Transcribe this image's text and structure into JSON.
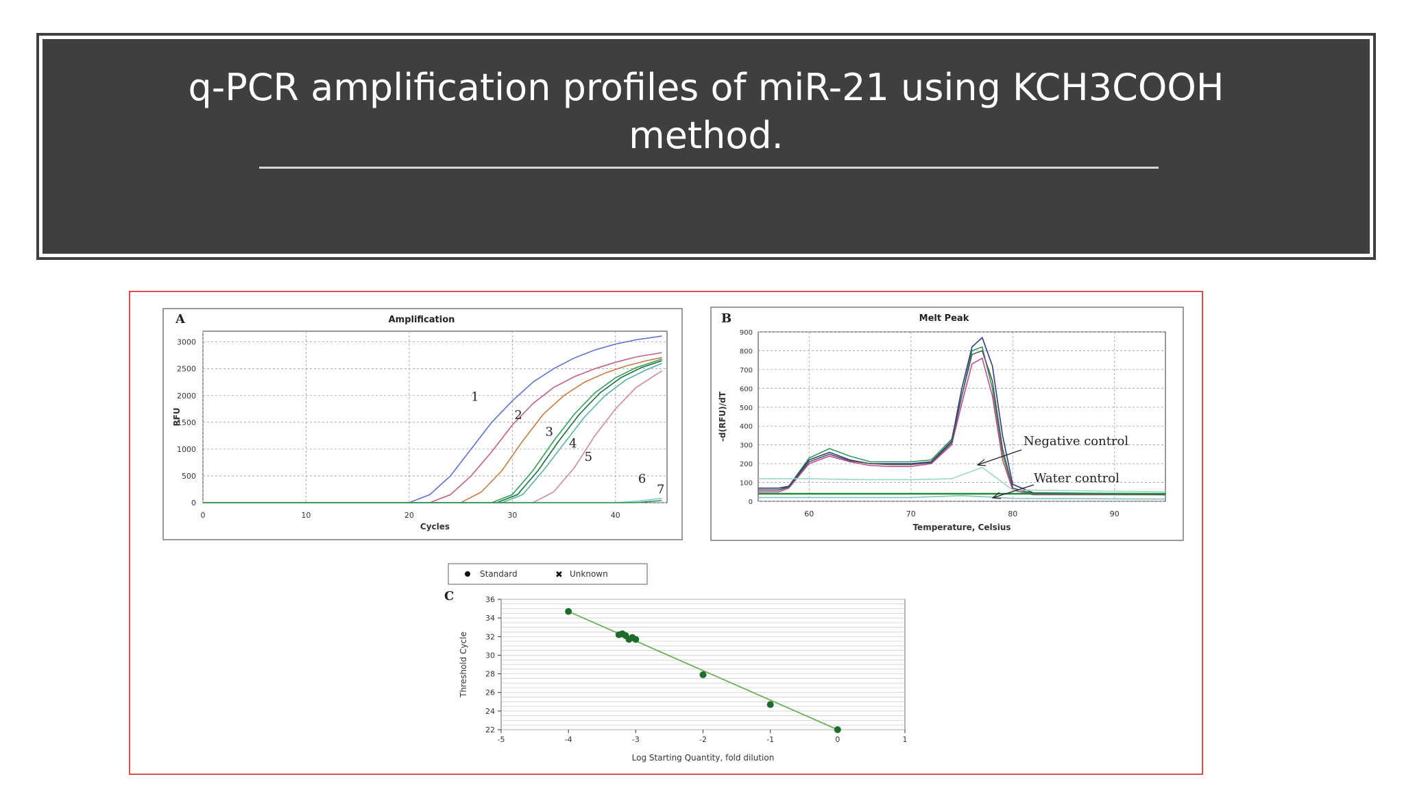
{
  "slide": {
    "title_line1": "q-PCR amplification profiles of miR-21 using KCH3COOH",
    "title_line2": "method."
  },
  "chart_data": [
    {
      "type": "line",
      "panel_label": "A",
      "title": "Amplification",
      "xlabel": "Cycles",
      "ylabel": "RFU",
      "xlim": [
        0,
        45
      ],
      "ylim": [
        0,
        3200
      ],
      "xticks": [
        0,
        10,
        20,
        30,
        40
      ],
      "yticks": [
        0,
        500,
        1000,
        1500,
        2000,
        2500,
        3000
      ],
      "ytick_labels": [
        "0",
        "500",
        "1000",
        "1500",
        "2000",
        "2500",
        "3000"
      ],
      "grid": true,
      "series": [
        {
          "name": "1",
          "color": "#5b6fd6",
          "x": [
            0,
            20,
            22,
            24,
            26,
            28,
            30,
            32,
            34,
            36,
            38,
            40,
            42,
            44.5
          ],
          "y": [
            0,
            0,
            150,
            500,
            1000,
            1500,
            1900,
            2250,
            2500,
            2700,
            2850,
            2960,
            3040,
            3110
          ]
        },
        {
          "name": "2",
          "color": "#c2607a",
          "x": [
            0,
            22,
            24,
            26,
            28,
            30,
            32,
            34,
            36,
            38,
            40,
            42,
            44.5
          ],
          "y": [
            0,
            0,
            150,
            500,
            950,
            1450,
            1850,
            2150,
            2350,
            2500,
            2620,
            2720,
            2800
          ]
        },
        {
          "name": "3",
          "color": "#c87a3e",
          "x": [
            0,
            25,
            27,
            29,
            31,
            33,
            35,
            37,
            39,
            41,
            43,
            44.5
          ],
          "y": [
            0,
            0,
            200,
            600,
            1150,
            1650,
            2000,
            2250,
            2420,
            2550,
            2650,
            2710
          ]
        },
        {
          "name": "4",
          "color": "#2ea05a",
          "x": [
            0,
            28,
            30,
            32,
            34,
            36,
            38,
            40,
            42,
            44.5
          ],
          "y": [
            0,
            0,
            150,
            600,
            1150,
            1650,
            2050,
            2330,
            2520,
            2680
          ]
        },
        {
          "name": "",
          "color": "#1f6b3a",
          "x": [
            0,
            28.5,
            30.5,
            32.5,
            34.5,
            36.5,
            38.5,
            40.5,
            42.5,
            44.5
          ],
          "y": [
            0,
            0,
            150,
            600,
            1150,
            1650,
            2050,
            2330,
            2520,
            2650
          ]
        },
        {
          "name": "",
          "color": "#55b3a5",
          "x": [
            0,
            29,
            31,
            33,
            35,
            37,
            39,
            41,
            43,
            44.5
          ],
          "y": [
            0,
            0,
            150,
            600,
            1100,
            1600,
            2000,
            2290,
            2480,
            2600
          ]
        },
        {
          "name": "5",
          "color": "#d08aa0",
          "x": [
            0,
            32,
            34,
            36,
            38,
            40,
            42,
            44.5
          ],
          "y": [
            0,
            0,
            200,
            650,
            1250,
            1750,
            2150,
            2460
          ]
        },
        {
          "name": "6",
          "color": "#6fc8e0",
          "x": [
            0,
            40,
            42,
            44.5
          ],
          "y": [
            0,
            0,
            25,
            80
          ]
        },
        {
          "name": "7",
          "color": "#2a9040",
          "x": [
            0,
            42,
            44.5
          ],
          "y": [
            0,
            0,
            40
          ]
        }
      ],
      "annotations": [
        "1",
        "2",
        "3",
        "4",
        "5",
        "6",
        "7"
      ]
    },
    {
      "type": "line",
      "panel_label": "B",
      "title": "Melt Peak",
      "xlabel": "Temperature, Celsius",
      "ylabel": "-d(RFU)/dT",
      "xlim": [
        55,
        95
      ],
      "ylim": [
        0,
        900
      ],
      "xticks": [
        60,
        70,
        80,
        90
      ],
      "yticks": [
        0,
        100,
        200,
        300,
        400,
        500,
        600,
        700,
        800,
        900
      ],
      "grid": true,
      "series": [
        {
          "name": "",
          "color": "#2e9a55",
          "x": [
            55,
            57,
            58,
            60,
            62,
            64,
            66,
            68,
            70,
            72,
            74,
            75,
            76,
            77,
            78,
            79,
            80,
            82,
            95
          ],
          "y": [
            60,
            60,
            80,
            230,
            280,
            240,
            210,
            210,
            210,
            220,
            330,
            560,
            800,
            820,
            600,
            250,
            70,
            40,
            40
          ]
        },
        {
          "name": "",
          "color": "#2c3a8a",
          "x": [
            55,
            57,
            58,
            60,
            62,
            64,
            66,
            68,
            70,
            72,
            74,
            75,
            76,
            77,
            78,
            79,
            80,
            82,
            95
          ],
          "y": [
            70,
            70,
            80,
            220,
            260,
            220,
            200,
            200,
            200,
            210,
            320,
            600,
            820,
            870,
            720,
            350,
            90,
            45,
            40
          ]
        },
        {
          "name": "",
          "color": "#c44d8c",
          "x": [
            55,
            57,
            58,
            60,
            62,
            64,
            66,
            68,
            70,
            72,
            74,
            75,
            76,
            77,
            78,
            79,
            80,
            82,
            95
          ],
          "y": [
            50,
            50,
            70,
            200,
            240,
            210,
            190,
            185,
            185,
            200,
            300,
            520,
            730,
            760,
            560,
            220,
            60,
            35,
            35
          ]
        },
        {
          "name": "",
          "color": "#555555",
          "x": [
            55,
            57,
            58,
            60,
            62,
            64,
            66,
            68,
            70,
            72,
            74,
            75,
            76,
            77,
            78,
            79,
            80,
            82,
            95
          ],
          "y": [
            60,
            60,
            75,
            210,
            250,
            215,
            200,
            195,
            195,
            205,
            310,
            560,
            780,
            800,
            640,
            280,
            70,
            40,
            35
          ]
        },
        {
          "name": "Negative control",
          "color": "#9ed8c6",
          "x": [
            55,
            60,
            65,
            70,
            74,
            76,
            77,
            78,
            80,
            95
          ],
          "y": [
            120,
            120,
            115,
            115,
            120,
            160,
            180,
            140,
            60,
            50
          ]
        },
        {
          "name": "Water control",
          "color": "#7fbfbf",
          "x": [
            55,
            60,
            65,
            70,
            75,
            78,
            80,
            95
          ],
          "y": [
            20,
            20,
            20,
            20,
            30,
            22,
            15,
            12
          ]
        },
        {
          "name": "",
          "color": "#1f8a3a",
          "x": [
            55,
            95
          ],
          "y": [
            40,
            40
          ]
        }
      ],
      "annotations": [
        "Negative control",
        "Water control"
      ]
    },
    {
      "type": "scatter",
      "panel_label": "C",
      "xlabel": "Log Starting Quantity, fold dilution",
      "ylabel": "Threshold Cycle",
      "xlim": [
        -5,
        1
      ],
      "ylim": [
        22,
        36
      ],
      "xticks": [
        -5,
        -4,
        -3,
        -2,
        -1,
        0,
        1
      ],
      "yticks": [
        22,
        24,
        26,
        28,
        30,
        32,
        34,
        36
      ],
      "legend": [
        "Standard",
        "Unknown"
      ],
      "legend_position": "top",
      "grid": true,
      "series": [
        {
          "name": "Standard",
          "color": "#1f6b2e",
          "x": [
            -4,
            -3.25,
            -3.2,
            -3.15,
            -3.1,
            -3.05,
            -3.0,
            -2.0,
            -1.0,
            0.0
          ],
          "y": [
            34.7,
            32.2,
            32.3,
            32.1,
            31.7,
            31.9,
            31.7,
            27.9,
            24.7,
            22.0
          ]
        }
      ],
      "fit_line": {
        "x": [
          -4,
          0
        ],
        "y": [
          34.7,
          22.0
        ],
        "color": "#6fae5a"
      }
    }
  ]
}
